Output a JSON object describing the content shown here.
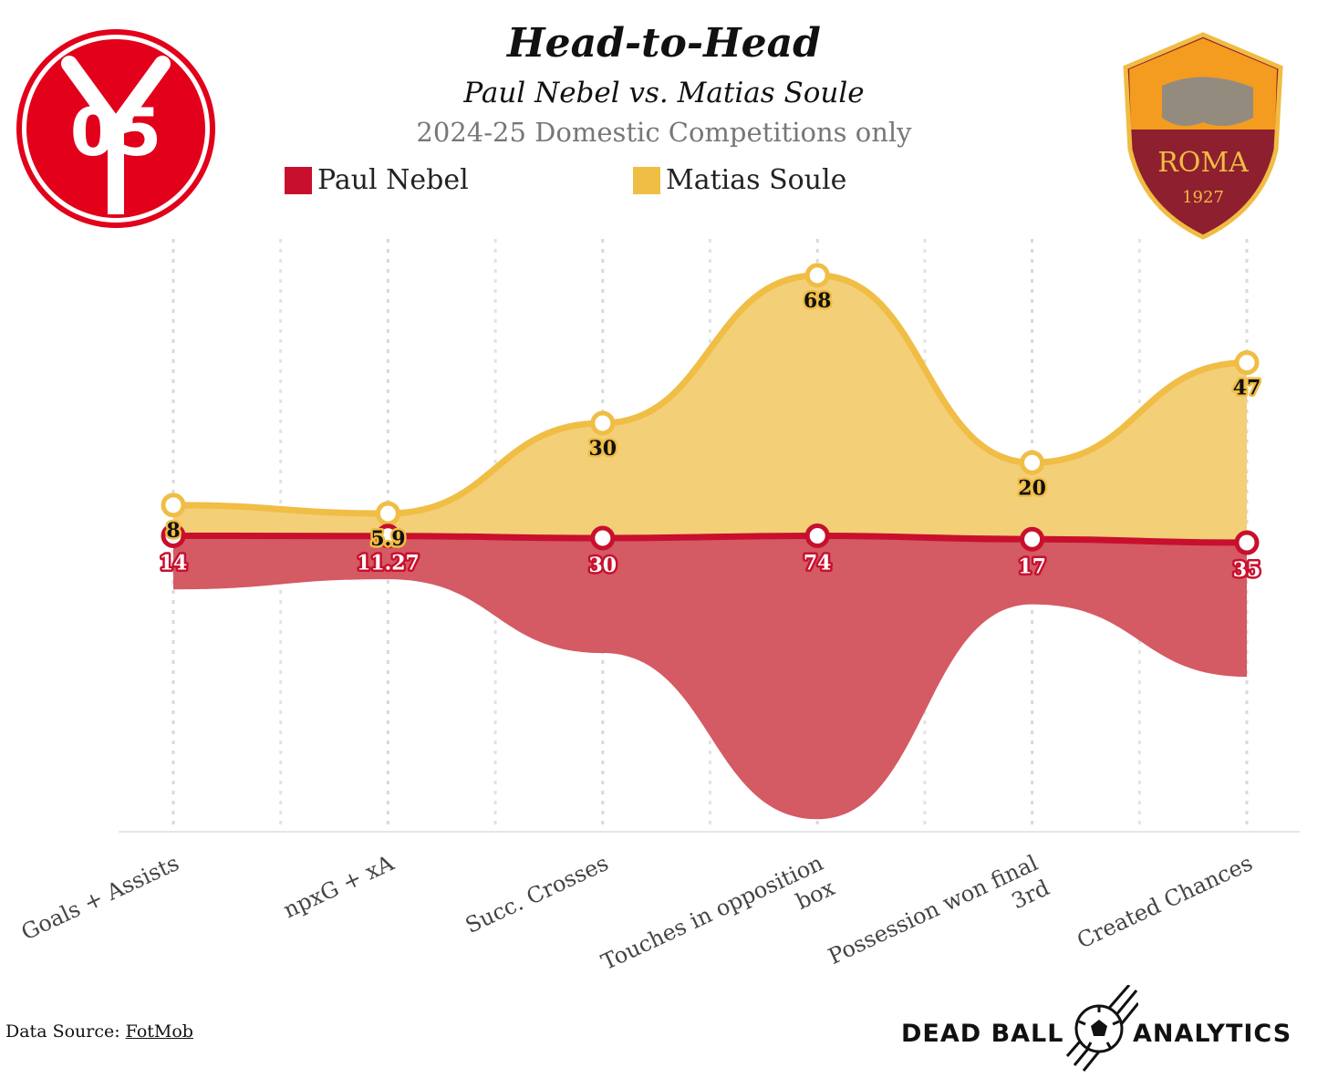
{
  "header": {
    "title": "Head-to-Head",
    "subtitle": "Paul Nebel vs. Matias Soule",
    "season": "2024-25 Domestic Competitions only"
  },
  "logos": {
    "left_text": "05",
    "right_text": "ROMA",
    "right_year": "1927"
  },
  "colors": {
    "nebel": "#c8102e",
    "nebel_fill": "#d45a63",
    "soule": "#f0bd45",
    "soule_fill": "#f3cf78"
  },
  "chart_data": {
    "type": "area",
    "title": "Head-to-Head",
    "categories": [
      "Goals + Assists",
      "npxG + xA",
      "Succ. Crosses",
      "Touches in opposition box",
      "Possession won final 3rd",
      "Created Chances"
    ],
    "series": [
      {
        "name": "Paul Nebel",
        "values": [
          14,
          11.27,
          30,
          74,
          17,
          35
        ],
        "labels": [
          "14",
          "11.27",
          "30",
          "74",
          "17",
          "35"
        ]
      },
      {
        "name": "Matias Soule",
        "values": [
          8,
          5.9,
          30,
          68,
          20,
          47
        ],
        "labels": [
          "8",
          "5.9",
          "30",
          "68",
          "20",
          "47"
        ]
      }
    ],
    "legend": "top-center",
    "grid": true,
    "xlabel": "",
    "ylabel": ""
  },
  "footer": {
    "source_prefix": "Data Source: ",
    "source_link": "FotMob",
    "brand_left": "DEAD BALL",
    "brand_right": "ANALYTICS"
  }
}
